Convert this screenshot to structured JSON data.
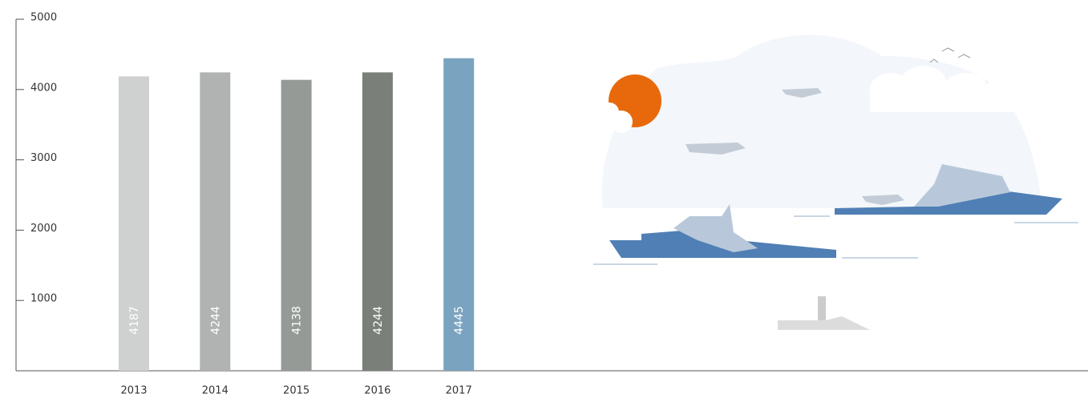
{
  "chart_data": {
    "type": "bar",
    "categories": [
      "2013",
      "2014",
      "2015",
      "2016",
      "2017"
    ],
    "values": [
      4187,
      4244,
      4138,
      4244,
      4445
    ],
    "colors": [
      "#cfd1d0",
      "#b1b3b2",
      "#959a96",
      "#7a7f7a",
      "#7aa3bf"
    ],
    "ylim": [
      0,
      5000
    ],
    "yticks": [
      1000,
      2000,
      3000,
      4000,
      5000
    ],
    "grid": false
  }
}
